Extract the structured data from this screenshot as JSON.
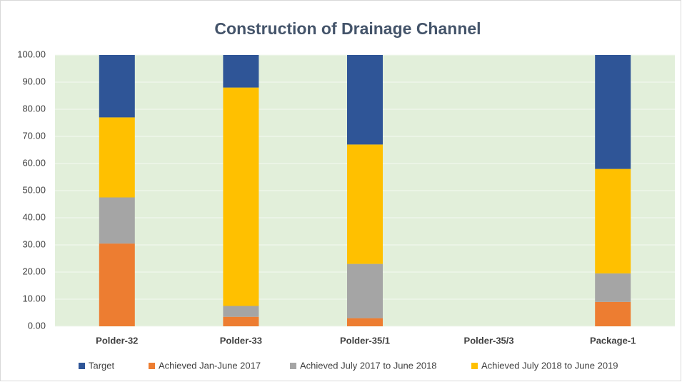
{
  "chart_data": {
    "type": "stacked_bar",
    "title": "Construction of Drainage Channel",
    "categories": [
      "Polder-32",
      "Polder-33",
      "Polder-35/1",
      "Polder-35/3",
      "Package-1"
    ],
    "series": [
      {
        "name": "Target",
        "color": "#2f5597",
        "values": [
          23,
          12,
          33,
          0,
          42
        ]
      },
      {
        "name": "Achieved Jan-June 2017",
        "color": "#ed7d31",
        "values": [
          30.5,
          3.5,
          3,
          0,
          9
        ]
      },
      {
        "name": "Achieved July 2017 to June 2018",
        "color": "#a5a5a5",
        "values": [
          17,
          4,
          20,
          0,
          10.5
        ]
      },
      {
        "name": "Achieved July 2018 to June 2019",
        "color": "#ffc000",
        "values": [
          29.5,
          80.5,
          44,
          0,
          38.5
        ]
      }
    ],
    "ylim": [
      0,
      100
    ],
    "yticks": [
      {
        "value": 0,
        "label": "0.00"
      },
      {
        "value": 10,
        "label": "10.00"
      },
      {
        "value": 20,
        "label": "20.00"
      },
      {
        "value": 30,
        "label": "30.00"
      },
      {
        "value": 40,
        "label": "40.00"
      },
      {
        "value": 50,
        "label": "50.00"
      },
      {
        "value": 60,
        "label": "60.00"
      },
      {
        "value": 70,
        "label": "70.00"
      },
      {
        "value": 80,
        "label": "80.00"
      },
      {
        "value": 90,
        "label": "90.00"
      },
      {
        "value": 100,
        "label": "100.00"
      }
    ],
    "grid": true,
    "legend": "bottom"
  }
}
